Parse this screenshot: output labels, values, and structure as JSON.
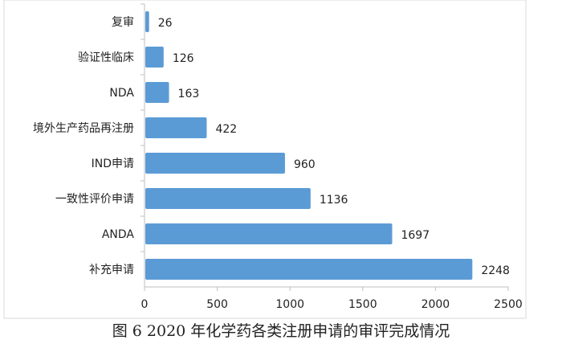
{
  "chart_data": {
    "type": "bar",
    "orientation": "horizontal",
    "categories": [
      "复审",
      "验证性临床",
      "NDA",
      "境外生产药品再注册",
      "IND申请",
      "一致性评价申请",
      "ANDA",
      "补充申请"
    ],
    "values": [
      26,
      126,
      163,
      422,
      960,
      1136,
      1697,
      2248
    ],
    "xlim": [
      0,
      2500
    ],
    "xticks": [
      "0",
      "500",
      "1000",
      "1500",
      "2000",
      "2500"
    ],
    "grid": false,
    "data_labels": true,
    "bar_color": "#5b9bd5",
    "title": "",
    "xlabel": "",
    "ylabel": ""
  },
  "caption": "图 6   2020 年化学药各类注册申请的审评完成情况"
}
